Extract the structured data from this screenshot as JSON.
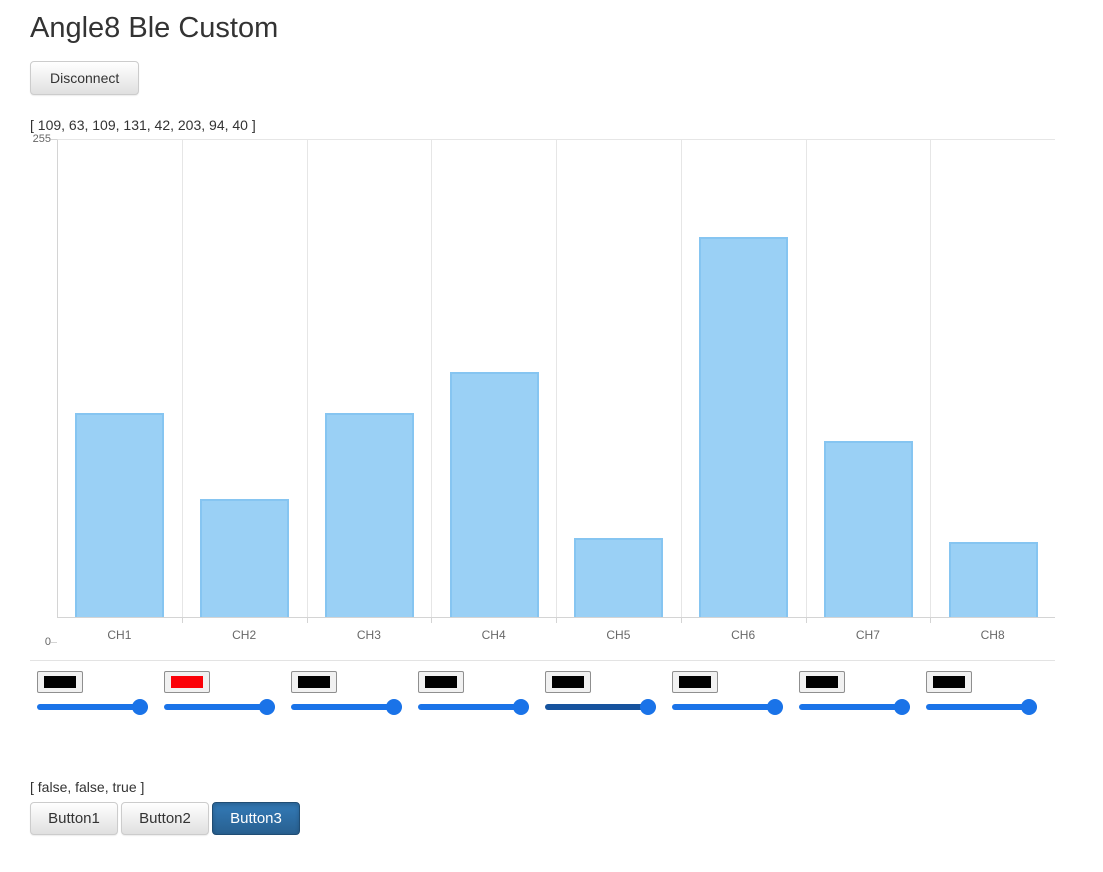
{
  "page": {
    "title": "Angle8 Ble Custom"
  },
  "toolbar": {
    "disconnect_label": "Disconnect"
  },
  "readout": {
    "values_text": "[ 109, 63, 109, 131, 42, 203, 94, 40 ]"
  },
  "chart_data": {
    "type": "bar",
    "categories": [
      "CH1",
      "CH2",
      "CH3",
      "CH4",
      "CH5",
      "CH6",
      "CH7",
      "CH8"
    ],
    "values": [
      109,
      63,
      109,
      131,
      42,
      203,
      94,
      40
    ],
    "title": "",
    "xlabel": "",
    "ylabel": "",
    "ylim": [
      0,
      255
    ],
    "y_tick_labels": [
      "255",
      "0"
    ],
    "grid": "vertical lines at category boundaries, top and bottom border only",
    "legend": "none",
    "bar_fill": "#9ad0f5",
    "bar_border": "#86c5f1"
  },
  "channel_controls": {
    "thumb_color": "#1a73e8",
    "channels": [
      {
        "name": "CH1",
        "swatch_color": "#000000",
        "slider_value": 255,
        "slider_max": 255,
        "track_color": "#1a73e8"
      },
      {
        "name": "CH2",
        "swatch_color": "#fb0007",
        "slider_value": 255,
        "slider_max": 255,
        "track_color": "#1a73e8"
      },
      {
        "name": "CH3",
        "swatch_color": "#000000",
        "slider_value": 255,
        "slider_max": 255,
        "track_color": "#1a73e8"
      },
      {
        "name": "CH4",
        "swatch_color": "#000000",
        "slider_value": 255,
        "slider_max": 255,
        "track_color": "#1a73e8"
      },
      {
        "name": "CH5",
        "swatch_color": "#000000",
        "slider_value": 255,
        "slider_max": 255,
        "track_color": "#16539e"
      },
      {
        "name": "CH6",
        "swatch_color": "#000000",
        "slider_value": 255,
        "slider_max": 255,
        "track_color": "#1a73e8"
      },
      {
        "name": "CH7",
        "swatch_color": "#000000",
        "slider_value": 255,
        "slider_max": 255,
        "track_color": "#1a73e8"
      },
      {
        "name": "CH8",
        "swatch_color": "#000000",
        "slider_value": 255,
        "slider_max": 255,
        "track_color": "#1a73e8"
      }
    ]
  },
  "bottom": {
    "states_text": "[ false, false, true ]",
    "active_button_color": "#286090",
    "buttons": [
      {
        "label": "Button1",
        "active": false
      },
      {
        "label": "Button2",
        "active": false
      },
      {
        "label": "Button3",
        "active": true
      }
    ]
  }
}
